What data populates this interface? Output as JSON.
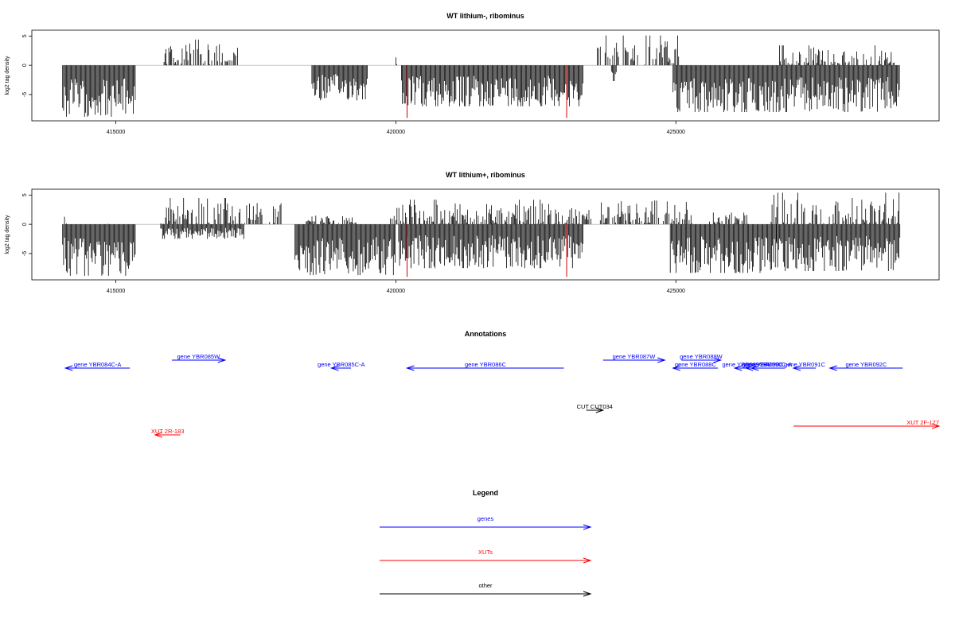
{
  "colors": {
    "genes": "#0000ff",
    "xuts": "#ff0000",
    "other": "#000000",
    "signal": "#000000",
    "marker": "#cc0000"
  },
  "chart_data": [
    {
      "type": "bar",
      "title": "WT lithium-, ribominus",
      "ylabel": "log2 tag density",
      "xlim": [
        413500,
        429700
      ],
      "ylim": [
        -9.5,
        6
      ],
      "x_ticks": [
        415000,
        420000,
        425000
      ],
      "x_tick_labels": [
        "415000",
        "420000",
        "425000"
      ],
      "y_ticks": [
        5,
        0,
        -5
      ],
      "y_tick_labels": [
        "5",
        "0",
        "-5"
      ],
      "grid": false,
      "positive_regions": [
        {
          "start": 415860,
          "end": 417200,
          "max": 4.4
        },
        {
          "start": 420000,
          "end": 420020,
          "max": 2.6
        },
        {
          "start": 423600,
          "end": 425050,
          "max": 5.1
        },
        {
          "start": 426850,
          "end": 428900,
          "max": 3.4
        }
      ],
      "negative_regions": [
        {
          "start": 414050,
          "end": 415350,
          "min": -8.8
        },
        {
          "start": 418500,
          "end": 419500,
          "min": -6.0
        },
        {
          "start": 420100,
          "end": 423350,
          "min": -7.0
        },
        {
          "start": 423850,
          "end": 423950,
          "min": -2.8
        },
        {
          "start": 424950,
          "end": 429000,
          "min": -8.0
        }
      ],
      "markers": [
        420200,
        423050
      ],
      "marker_depth": -9
    },
    {
      "type": "bar",
      "title": "WT lithium+, ribominus",
      "ylabel": "log2 tag density",
      "xlim": [
        413500,
        429700
      ],
      "ylim": [
        -9.5,
        6
      ],
      "x_ticks": [
        415000,
        420000,
        425000
      ],
      "x_tick_labels": [
        "415000",
        "420000",
        "425000"
      ],
      "y_ticks": [
        5,
        0,
        -5
      ],
      "y_tick_labels": [
        "5",
        "0",
        "-5"
      ],
      "grid": false,
      "positive_regions": [
        {
          "start": 414050,
          "end": 414150,
          "max": 2.4
        },
        {
          "start": 414850,
          "end": 414900,
          "max": 2.5
        },
        {
          "start": 415800,
          "end": 418000,
          "max": 4.5
        },
        {
          "start": 418400,
          "end": 419300,
          "max": 1.8
        },
        {
          "start": 419900,
          "end": 423500,
          "max": 4.2
        },
        {
          "start": 423650,
          "end": 425300,
          "max": 4.8
        },
        {
          "start": 425600,
          "end": 426300,
          "max": 2.0
        },
        {
          "start": 426700,
          "end": 429000,
          "max": 5.4
        }
      ],
      "negative_regions": [
        {
          "start": 414050,
          "end": 415350,
          "min": -8.8
        },
        {
          "start": 415800,
          "end": 417300,
          "min": -2.5
        },
        {
          "start": 418200,
          "end": 420000,
          "min": -8.7
        },
        {
          "start": 420050,
          "end": 423350,
          "min": -7.5
        },
        {
          "start": 424900,
          "end": 426800,
          "min": -8.3
        },
        {
          "start": 426800,
          "end": 429000,
          "min": -8.0
        }
      ],
      "markers": [
        420200,
        423050
      ],
      "marker_depth": -9
    }
  ],
  "annotations": {
    "title": "Annotations",
    "features": [
      {
        "label": "gene YBR084C-A",
        "start": 414100,
        "end": 415250,
        "strand": "-",
        "kind": "genes",
        "track": 0
      },
      {
        "label": "gene YBR085W",
        "start": 416000,
        "end": 416950,
        "strand": "+",
        "kind": "genes",
        "track": 1
      },
      {
        "label": "gene YBR085C-A",
        "start": 418850,
        "end": 419200,
        "strand": "-",
        "kind": "genes",
        "track": 0
      },
      {
        "label": "gene YBR086C",
        "start": 420200,
        "end": 423000,
        "strand": "-",
        "kind": "genes",
        "track": 0
      },
      {
        "label": "gene YBR087W",
        "start": 423700,
        "end": 424800,
        "strand": "+",
        "kind": "genes",
        "track": 1
      },
      {
        "label": "gene YBR089W",
        "start": 425100,
        "end": 425800,
        "strand": "+",
        "kind": "genes",
        "track": 1
      },
      {
        "label": "gene YBR088C",
        "start": 424950,
        "end": 425750,
        "strand": "-",
        "kind": "genes",
        "track": 0
      },
      {
        "label": "gene YBR089C-A",
        "start": 426050,
        "end": 426450,
        "strand": "-",
        "kind": "genes",
        "track": 0
      },
      {
        "label": "gene YBR090C",
        "start": 426250,
        "end": 426850,
        "strand": "-",
        "kind": "genes",
        "track": 0
      },
      {
        "label": "gene YBR090C-A",
        "start": 426350,
        "end": 426950,
        "strand": "-",
        "kind": "genes",
        "track": 0
      },
      {
        "label": "gene YBR091C",
        "start": 427100,
        "end": 427500,
        "strand": "-",
        "kind": "genes",
        "track": 0
      },
      {
        "label": "gene YBR092C",
        "start": 427750,
        "end": 429050,
        "strand": "-",
        "kind": "genes",
        "track": 0
      },
      {
        "label": "CUT CUT034",
        "start": 423400,
        "end": 423700,
        "strand": "+",
        "kind": "other",
        "track": 3
      },
      {
        "label": "XUT 2R-183",
        "start": 415700,
        "end": 416150,
        "strand": "-",
        "kind": "xuts",
        "track": 4
      },
      {
        "label": "XUT 2F-177",
        "start": 427100,
        "end": 429700,
        "strand": "+",
        "kind": "xuts",
        "track": 5
      }
    ]
  },
  "legend": {
    "title": "Legend",
    "items": [
      {
        "label": "genes",
        "kind": "genes"
      },
      {
        "label": "XUTs",
        "kind": "xuts"
      },
      {
        "label": "other",
        "kind": "other"
      }
    ]
  }
}
